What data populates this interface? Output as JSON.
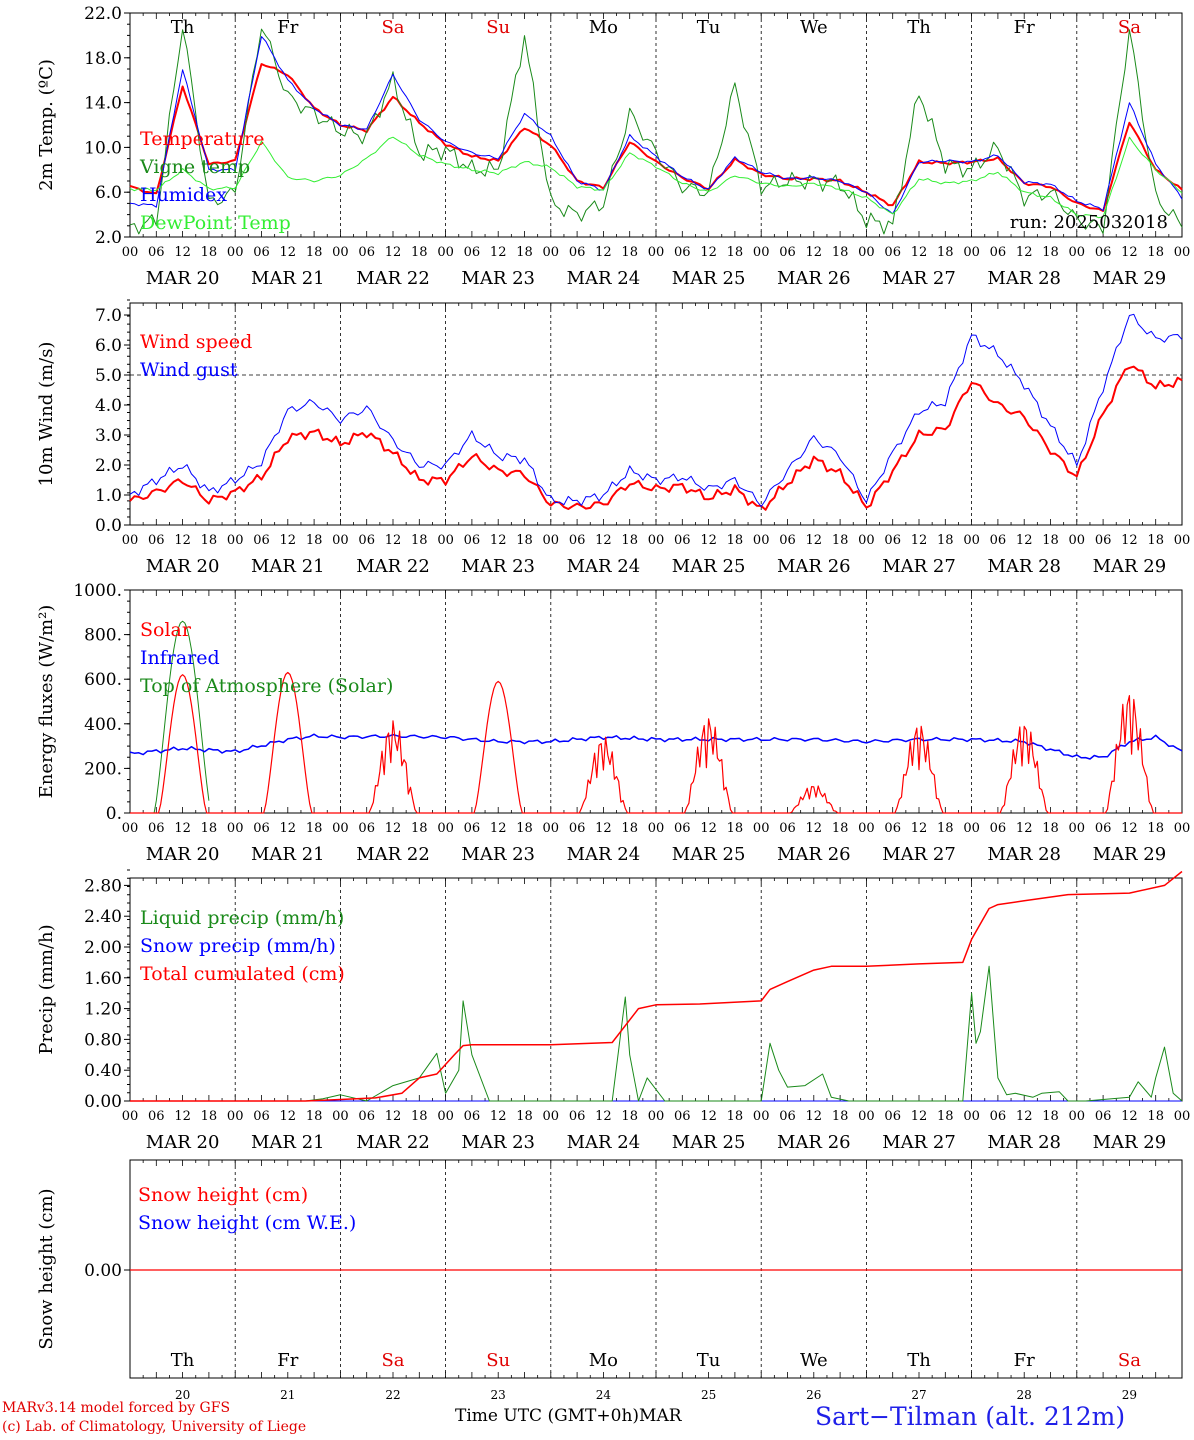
{
  "run_label": "run: 2025032018",
  "x_axis": {
    "hour_ticks": [
      "00",
      "06",
      "12",
      "18"
    ],
    "end_tick": "00",
    "day_labels": [
      "MAR 20",
      "MAR 21",
      "MAR 22",
      "MAR 23",
      "MAR 24",
      "MAR 25",
      "MAR 26",
      "MAR 27",
      "MAR 28",
      "MAR 29"
    ],
    "weekdays": [
      "Th",
      "Fr",
      "Sa",
      "Su",
      "Mo",
      "Tu",
      "We",
      "Th",
      "Fr",
      "Sa"
    ],
    "weekend_color": "#e00000",
    "date_numbers": [
      "20",
      "21",
      "22",
      "23",
      "24",
      "25",
      "26",
      "27",
      "28",
      "29"
    ],
    "bottom_title": "Time UTC (GMT+0h)",
    "month": "MAR"
  },
  "footer": {
    "credit_line1": "MARv3.14 model forced by GFS",
    "credit_line2": "(c) Lab. of Climatology, University of Liege",
    "station": "Sart−Tilman (alt. 212m)"
  },
  "chart_data": [
    {
      "type": "line",
      "ylabel": "2m Temp. (ºC)",
      "ylim": [
        2,
        22
      ],
      "yticks": [
        "2.0",
        "6.0",
        "10.0",
        "14.0",
        "18.0",
        "22.0"
      ],
      "x_hours": [
        0,
        6,
        12,
        18,
        24,
        30,
        36,
        42,
        48,
        54,
        60,
        66,
        72,
        78,
        84,
        90,
        96,
        102,
        108,
        114,
        120,
        126,
        132,
        138,
        144,
        150,
        156,
        162,
        168,
        174,
        180,
        186,
        192,
        198,
        204,
        210,
        216,
        222,
        228,
        234,
        240
      ],
      "series": [
        {
          "name": "Temperature",
          "color": "#ff0000",
          "width": 2,
          "values": [
            6.5,
            5.8,
            15.5,
            8.5,
            8.8,
            17.5,
            16.5,
            13.5,
            12,
            11.5,
            14.5,
            12.2,
            10.3,
            9.2,
            8.8,
            11.8,
            10.2,
            7,
            6.4,
            10.5,
            8.7,
            7.3,
            6.3,
            8.9,
            7.6,
            7.2,
            7.2,
            7.0,
            6.0,
            4.8,
            8.7,
            8.6,
            8.7,
            9.0,
            6.8,
            6.5,
            5.0,
            4.3,
            12.3,
            8.0,
            6.2
          ]
        },
        {
          "name": "Vigne temp",
          "color": "#1a8a1a",
          "width": 1,
          "values": [
            2.8,
            3.5,
            21.0,
            5.0,
            6.0,
            21.0,
            14.5,
            13.0,
            11.5,
            11.0,
            16.0,
            9.5,
            9.8,
            8.0,
            8.0,
            20.0,
            5.0,
            4.0,
            5.0,
            13.0,
            9.5,
            6.5,
            6.0,
            15.5,
            6.5,
            7.0,
            7.0,
            6.8,
            3.5,
            3.0,
            15.0,
            8.5,
            8.0,
            10.0,
            5.5,
            6.0,
            3.5,
            2.8,
            20.5,
            5.5,
            3.0
          ]
        },
        {
          "name": "Humidex",
          "color": "#0000ff",
          "width": 1,
          "values": [
            5.0,
            4.8,
            17.0,
            8.0,
            8.0,
            20.0,
            16.0,
            13.5,
            12.0,
            11.6,
            16.5,
            12.5,
            10.5,
            9.5,
            9.0,
            13.0,
            11.0,
            7.0,
            6.2,
            11.0,
            9.2,
            7.4,
            6.2,
            9.1,
            7.8,
            7.2,
            7.3,
            7.0,
            6.0,
            4.0,
            8.7,
            8.8,
            8.7,
            9.3,
            6.9,
            6.7,
            5.2,
            4.5,
            14.0,
            8.5,
            5.5
          ]
        },
        {
          "name": "DewPoint Temp",
          "color": "#33ee33",
          "width": 1,
          "values": [
            6.3,
            6.2,
            8.0,
            6.3,
            6.4,
            10.5,
            7.3,
            7.0,
            7.5,
            9.0,
            11.0,
            9.3,
            8.5,
            8.0,
            7.7,
            8.7,
            8.2,
            6.5,
            6.2,
            9.5,
            8.3,
            6.8,
            6.0,
            7.5,
            6.8,
            6.5,
            6.8,
            6.3,
            5.5,
            4.0,
            7.2,
            6.8,
            7.0,
            7.8,
            6.0,
            5.5,
            4.0,
            3.8,
            10.8,
            8.0,
            6.0
          ]
        }
      ]
    },
    {
      "type": "line",
      "ylabel": "10m Wind (m/s)",
      "ylim": [
        0,
        7.5
      ],
      "yticks": [
        "0.0",
        "1.0",
        "2.0",
        "3.0",
        "4.0",
        "5.0",
        "6.0",
        "7.0"
      ],
      "reference_line": 5.0,
      "x_hours": [
        0,
        6,
        12,
        18,
        24,
        30,
        36,
        42,
        48,
        54,
        60,
        66,
        72,
        78,
        84,
        90,
        96,
        102,
        108,
        114,
        120,
        126,
        132,
        138,
        144,
        150,
        156,
        162,
        168,
        174,
        180,
        186,
        192,
        198,
        204,
        210,
        216,
        222,
        228,
        234,
        240
      ],
      "series": [
        {
          "name": "Wind speed",
          "color": "#ff0000",
          "width": 2,
          "values": [
            0.8,
            1.1,
            1.5,
            0.8,
            1.1,
            1.6,
            2.9,
            3.1,
            2.7,
            3.1,
            2.4,
            1.5,
            1.5,
            2.3,
            1.8,
            1.7,
            0.7,
            0.6,
            0.7,
            1.4,
            1.2,
            1.3,
            0.9,
            1.2,
            0.5,
            1.4,
            2.2,
            1.7,
            0.6,
            1.8,
            3.0,
            3.2,
            4.8,
            4.0,
            3.6,
            2.5,
            1.6,
            3.7,
            5.4,
            4.6,
            4.8
          ]
        },
        {
          "name": "Wind gust",
          "color": "#0000ff",
          "width": 1,
          "values": [
            1.0,
            1.5,
            2.0,
            1.1,
            1.5,
            2.1,
            3.8,
            4.1,
            3.5,
            3.9,
            2.8,
            2.0,
            2.0,
            3.0,
            2.3,
            2.2,
            0.8,
            0.8,
            1.0,
            1.8,
            1.5,
            1.6,
            1.2,
            1.5,
            0.7,
            1.8,
            2.9,
            2.3,
            0.8,
            2.4,
            3.8,
            4.1,
            6.3,
            5.7,
            4.7,
            3.3,
            2.0,
            4.6,
            7.0,
            6.2,
            6.3
          ]
        }
      ]
    },
    {
      "type": "line",
      "ylabel": "Energy fluxes (W/m²)",
      "ylim": [
        0,
        1000
      ],
      "yticks": [
        "0.",
        "200.",
        "400.",
        "600.",
        "800.",
        "1000."
      ],
      "series": [
        {
          "name": "Solar",
          "color": "#ff0000",
          "width": 1.2,
          "daily_peaks": [
            620,
            630,
            420,
            590,
            350,
            440,
            130,
            410,
            420,
            560
          ]
        },
        {
          "name": "Infrared",
          "color": "#0000ff",
          "width": 1.5,
          "x_hours": [
            0,
            12,
            24,
            36,
            42,
            48,
            60,
            72,
            84,
            96,
            108,
            120,
            132,
            144,
            156,
            168,
            180,
            192,
            204,
            216,
            222,
            228,
            234,
            240
          ],
          "values": [
            265,
            290,
            275,
            330,
            345,
            340,
            345,
            340,
            320,
            320,
            340,
            330,
            330,
            330,
            330,
            320,
            330,
            330,
            320,
            250,
            250,
            320,
            340,
            275
          ]
        },
        {
          "name": "Top of Atmosphere (Solar)",
          "color": "#1a8a1a",
          "width": 1,
          "daily_peaks": [
            860,
            870,
            878,
            884,
            892,
            897,
            902,
            907,
            912,
            918
          ]
        }
      ]
    },
    {
      "type": "line",
      "ylabel": "Precip (mm/h)",
      "ylim": [
        0,
        3.0
      ],
      "yticks": [
        "0.00",
        "0.40",
        "0.80",
        "1.20",
        "1.60",
        "2.00",
        "2.40",
        "2.80"
      ],
      "series": [
        {
          "name": "Liquid precip (mm/h)",
          "color": "#1a8a1a",
          "width": 1,
          "x_hours": [
            0,
            40,
            44,
            48,
            54,
            60,
            66,
            70,
            72,
            75,
            76,
            78,
            82,
            96,
            110,
            113,
            114,
            116,
            118,
            122,
            136,
            144,
            146,
            148,
            150,
            154,
            158,
            160,
            164,
            174,
            190,
            192,
            193,
            194,
            196,
            198,
            200,
            202,
            206,
            208,
            212,
            214,
            218,
            228,
            230,
            233,
            234,
            236,
            238,
            240
          ],
          "values": [
            0,
            0,
            0.03,
            0.08,
            0,
            0.2,
            0.3,
            0.62,
            0.1,
            0.4,
            1.3,
            0.6,
            0,
            0,
            0,
            1.35,
            0.6,
            0,
            0.3,
            0,
            0,
            0,
            0.75,
            0.4,
            0.18,
            0.2,
            0.35,
            0.05,
            0,
            0,
            0,
            1.4,
            0.75,
            0.9,
            1.75,
            0.3,
            0.08,
            0.1,
            0.05,
            0.1,
            0.12,
            0,
            0,
            0.05,
            0.25,
            0.05,
            0.3,
            0.7,
            0.1,
            0
          ]
        },
        {
          "name": "Snow precip (mm/h)",
          "color": "#0000ff",
          "width": 1,
          "x_hours": [
            0,
            240
          ],
          "values": [
            0,
            0
          ]
        },
        {
          "name": "Total cumulated (cm)",
          "color": "#ff0000",
          "width": 1.5,
          "x_hours": [
            0,
            40,
            48,
            56,
            62,
            66,
            70,
            74,
            76,
            78,
            84,
            96,
            110,
            116,
            120,
            130,
            144,
            146,
            150,
            156,
            160,
            168,
            180,
            190,
            192,
            196,
            198,
            204,
            214,
            228,
            236,
            240
          ],
          "values": [
            0,
            0,
            0.02,
            0.04,
            0.1,
            0.3,
            0.35,
            0.6,
            0.72,
            0.73,
            0.73,
            0.73,
            0.76,
            1.2,
            1.25,
            1.26,
            1.3,
            1.45,
            1.55,
            1.7,
            1.75,
            1.75,
            1.78,
            1.8,
            2.1,
            2.5,
            2.55,
            2.6,
            2.68,
            2.7,
            2.8,
            2.98
          ]
        }
      ]
    },
    {
      "type": "line",
      "ylabel": "Snow height (cm)",
      "yticks": [
        "0.00"
      ],
      "series": [
        {
          "name": "Snow height (cm)",
          "color": "#ff0000",
          "width": 1.2,
          "x_hours": [
            0,
            240
          ],
          "values": [
            0,
            0
          ]
        },
        {
          "name": "Snow height (cm W.E.)",
          "color": "#0000ff",
          "width": 1,
          "x_hours": [
            0,
            240
          ],
          "values": [
            0,
            0
          ]
        }
      ]
    }
  ]
}
